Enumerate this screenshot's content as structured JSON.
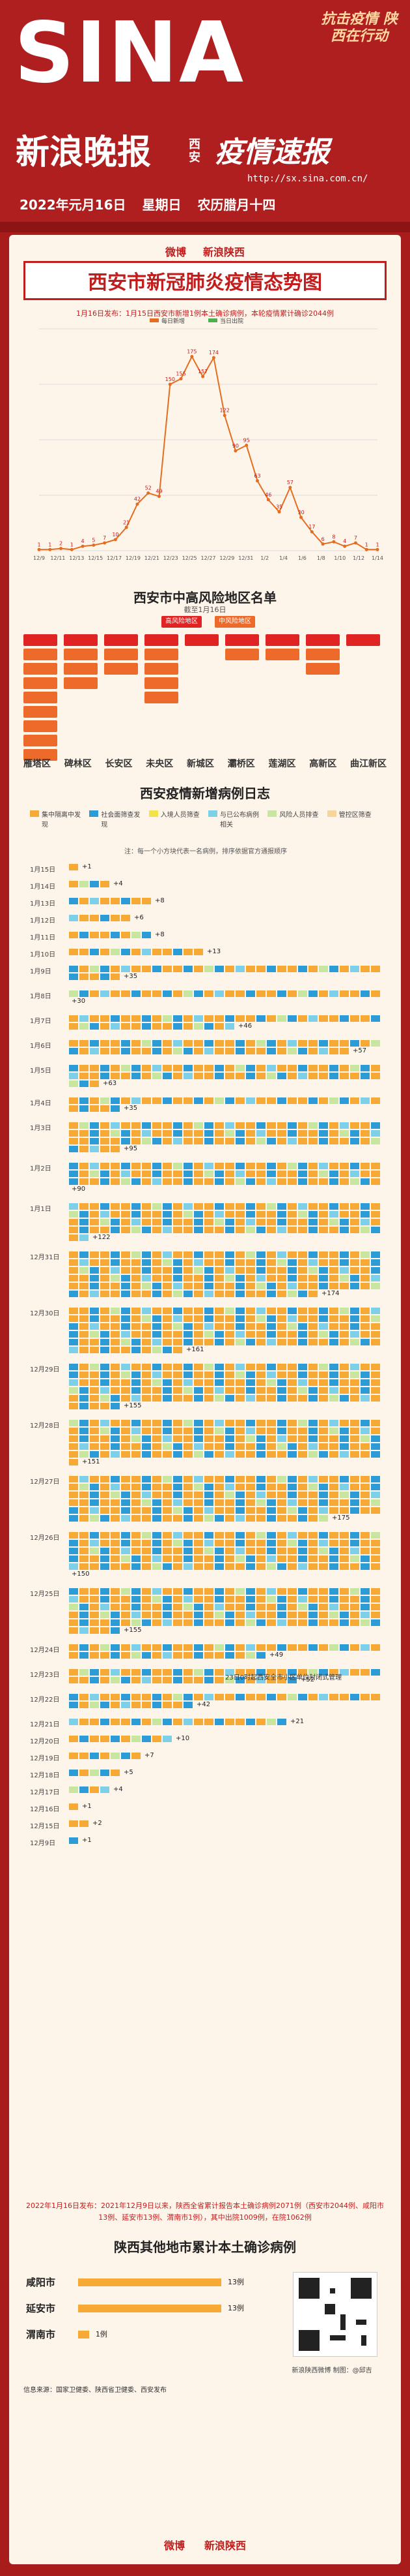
{
  "header": {
    "brand": "SINA",
    "slogan": "抗击疫情 陕西在行动",
    "paper": "新浪晚报",
    "region": "西安",
    "column": "疫情速报",
    "url": "http://sx.sina.com.cn/",
    "date": "2022年元月16日",
    "weekday": "星期日",
    "lunar": "农历腊月十四"
  },
  "brand_bar": {
    "weibo": "微博",
    "sina": "新浪陕西"
  },
  "main_title": "西安市新冠肺炎疫情态势图",
  "top_note": "1月16日发布：1月15日西安市新增1例本土确诊病例，本轮疫情累计确诊2044例",
  "chart_data": {
    "type": "line",
    "title": "",
    "series": [
      {
        "name": "每日新增",
        "color": "#e46d1f"
      },
      {
        "name": "当日出院",
        "color": "#4caf50"
      }
    ],
    "x_dates": [
      "12/9",
      "12/11",
      "12/13",
      "12/15",
      "12/17",
      "12/19",
      "12/21",
      "12/23",
      "12/25",
      "12/27",
      "12/29",
      "12/31",
      "1/2",
      "1/4",
      "1/6",
      "1/8",
      "1/10",
      "1/12",
      "1/14"
    ],
    "daily_labels": [
      1,
      1,
      2,
      1,
      4,
      5,
      7,
      10,
      21,
      42,
      52,
      49,
      150,
      155,
      175,
      157,
      174,
      122,
      90,
      95,
      63,
      46,
      35,
      57,
      30,
      17,
      6,
      8,
      4,
      7,
      1,
      1
    ],
    "xlabel": "",
    "ylabel": "",
    "ylim": [
      0,
      200
    ]
  },
  "risk_title": "西安市中高风险地区名单",
  "risk_date": "截至1月16日",
  "risk_legend": [
    {
      "label": "高风险地区"
    },
    {
      "label": "中风险地区"
    }
  ],
  "districts": [
    "雁塔区",
    "碑林区",
    "长安区",
    "未央区",
    "新城区",
    "灞桥区",
    "莲湖区",
    "高新区",
    "曲江新区"
  ],
  "daily_title": "西安疫情新增病例日志",
  "legend": [
    {
      "label": "集中隔离中发现",
      "color": "#f6a935"
    },
    {
      "label": "社会面筛查发现",
      "color": "#2d9bd6"
    },
    {
      "label": "入境人员筛查",
      "color": "#f2e34a"
    },
    {
      "label": "与已公布病例相关",
      "color": "#7ed0e8"
    },
    {
      "label": "风险人员排查",
      "color": "#c8e6a0"
    },
    {
      "label": "管控区筛查",
      "color": "#f7d59a"
    }
  ],
  "legend_note": "注：每一个小方块代表一名病例，排序依据官方通报顺序",
  "daily_rows": [
    {
      "date": "1月15日",
      "count": 1,
      "label": "+1"
    },
    {
      "date": "1月14日",
      "count": 4,
      "label": "+4"
    },
    {
      "date": "1月13日",
      "count": 8,
      "label": "+8"
    },
    {
      "date": "1月12日",
      "count": 6,
      "label": "+6"
    },
    {
      "date": "1月11日",
      "count": 8,
      "label": "+8"
    },
    {
      "date": "1月10日",
      "count": 13,
      "label": "+13"
    },
    {
      "date": "1月9日",
      "count": 35,
      "label": "+35"
    },
    {
      "date": "1月8日",
      "count": 30,
      "label": "+30"
    },
    {
      "date": "1月7日",
      "count": 46,
      "label": "+46"
    },
    {
      "date": "1月6日",
      "count": 57,
      "label": "+57"
    },
    {
      "date": "1月5日",
      "count": 63,
      "label": "+63"
    },
    {
      "date": "1月4日",
      "count": 35,
      "label": "+35"
    },
    {
      "date": "1月3日",
      "count": 95,
      "label": "+95"
    },
    {
      "date": "1月2日",
      "count": 90,
      "label": "+90"
    },
    {
      "date": "1月1日",
      "count": 122,
      "label": "+122"
    },
    {
      "date": "12月31日",
      "count": 174,
      "label": "+174"
    },
    {
      "date": "12月30日",
      "count": 161,
      "label": "+161"
    },
    {
      "date": "12月29日",
      "count": 155,
      "label": "+155"
    },
    {
      "date": "12月28日",
      "count": 151,
      "label": "+151"
    },
    {
      "date": "12月27日",
      "count": 175,
      "label": "+175"
    },
    {
      "date": "12月26日",
      "count": 150,
      "label": "+150"
    },
    {
      "date": "12月25日",
      "count": 155,
      "label": "+155"
    },
    {
      "date": "12月24日",
      "count": 49,
      "label": "+49"
    },
    {
      "date": "12月23日",
      "count": 52,
      "label": "+52"
    },
    {
      "date": "12月22日",
      "count": 42,
      "label": "+42"
    },
    {
      "date": "12月21日",
      "count": 21,
      "label": "+21"
    },
    {
      "date": "12月20日",
      "count": 10,
      "label": "+10"
    },
    {
      "date": "12月19日",
      "count": 7,
      "label": "+7"
    },
    {
      "date": "12月18日",
      "count": 5,
      "label": "+5"
    },
    {
      "date": "12月17日",
      "count": 4,
      "label": "+4"
    },
    {
      "date": "12月16日",
      "count": 1,
      "label": "+1"
    },
    {
      "date": "12月15日",
      "count": 2,
      "label": "+2"
    },
    {
      "date": "12月9日",
      "count": 1,
      "label": "+1"
    }
  ],
  "annotation": "23日0时起西安全市小区单位封闭式管理",
  "bottom_note": "2022年1月16日发布：2021年12月9日以来，陕西全省累计报告本土确诊病例2071例（西安市2044例、咸阳市13例、延安市13例、渭南市1例），其中出院1009例，在院1062例",
  "other_title": "陕西其他地市累计本土确诊病例",
  "cities": [
    {
      "name": "咸阳市",
      "value": 13,
      "label": "13例"
    },
    {
      "name": "延安市",
      "value": 13,
      "label": "13例"
    },
    {
      "name": "渭南市",
      "value": 1,
      "label": "1例"
    }
  ],
  "qr_label": "新浪陕西微博 制图：@邱吉",
  "source": "信息来源：国家卫健委、陕西省卫健委、西安发布",
  "footer": {
    "weibo": "微博",
    "sina": "新浪陕西"
  }
}
